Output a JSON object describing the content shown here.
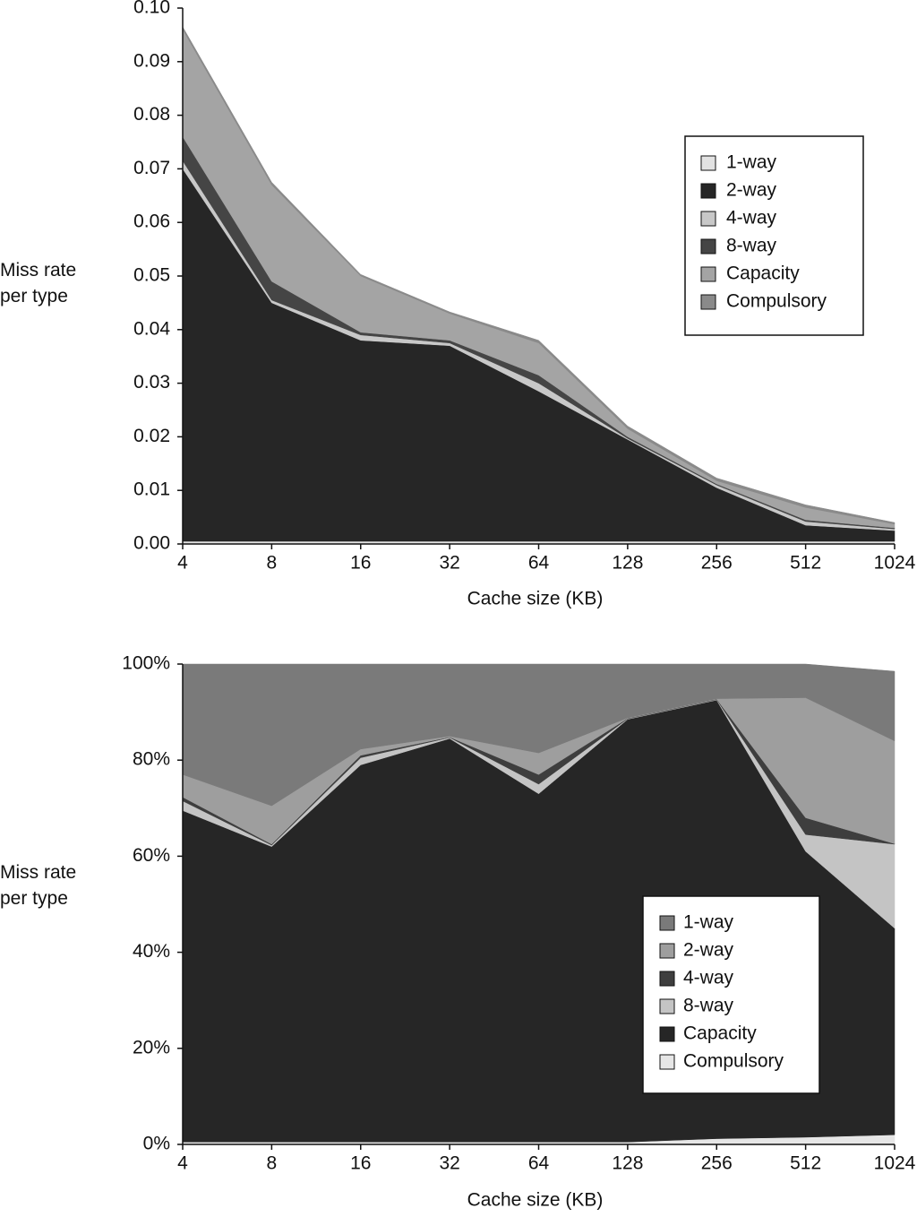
{
  "chart_data": [
    {
      "type": "stacked_area",
      "xlabel": "Cache size (KB)",
      "ylabel": "Miss rate per type",
      "categories": [
        "4",
        "8",
        "16",
        "32",
        "64",
        "128",
        "256",
        "512",
        "1024"
      ],
      "ylim": [
        0,
        0.1
      ],
      "yticks": [
        {
          "value": 0,
          "label": "0.00"
        },
        {
          "value": 0.01,
          "label": "0.01"
        },
        {
          "value": 0.02,
          "label": "0.02"
        },
        {
          "value": 0.03,
          "label": "0.03"
        },
        {
          "value": 0.04,
          "label": "0.04"
        },
        {
          "value": 0.05,
          "label": "0.05"
        },
        {
          "value": 0.06,
          "label": "0.06"
        },
        {
          "value": 0.07,
          "label": "0.07"
        },
        {
          "value": 0.08,
          "label": "0.08"
        },
        {
          "value": 0.09,
          "label": "0.09"
        },
        {
          "value": 0.1,
          "label": "0.10"
        }
      ],
      "legend_reversed": false,
      "series": [
        {
          "name": "1-way",
          "color": "#e2e2e2",
          "values": [
            0.0005,
            0.0005,
            0.0005,
            0.0005,
            0.0005,
            0.0005,
            0.0005,
            0.0005,
            0.0005
          ]
        },
        {
          "name": "2-way",
          "color": "#262626",
          "values": [
            0.0695,
            0.0445,
            0.0375,
            0.0365,
            0.028,
            0.019,
            0.01,
            0.003,
            0.002
          ]
        },
        {
          "name": "4-way",
          "color": "#c8c8c8",
          "values": [
            0.0015,
            0.0005,
            0.001,
            0.0005,
            0.0015,
            0.0002,
            0.0005,
            0.0007,
            0.0003
          ]
        },
        {
          "name": "8-way",
          "color": "#454545",
          "values": [
            0.0045,
            0.0035,
            0.0005,
            0.0005,
            0.0015,
            0.0003,
            0.0002,
            0.0003,
            0.0002
          ]
        },
        {
          "name": "Capacity",
          "color": "#a4a4a4",
          "values": [
            0.02,
            0.018,
            0.0105,
            0.005,
            0.006,
            0.0015,
            0.0006,
            0.0023,
            0.0007
          ]
        },
        {
          "name": "Compulsory",
          "color": "#8a8a8a",
          "values": [
            0.0005,
            0.0005,
            0.0003,
            0.0003,
            0.0005,
            0.0005,
            0.0005,
            0.0005,
            0.0003
          ]
        }
      ]
    },
    {
      "type": "stacked_area",
      "xlabel": "Cache size (KB)",
      "ylabel": "Miss rate per type",
      "categories": [
        "4",
        "8",
        "16",
        "32",
        "64",
        "128",
        "256",
        "512",
        "1024"
      ],
      "ylim": [
        0,
        100
      ],
      "yticks": [
        {
          "value": 0,
          "label": "0%"
        },
        {
          "value": 20,
          "label": "20%"
        },
        {
          "value": 40,
          "label": "40%"
        },
        {
          "value": 60,
          "label": "60%"
        },
        {
          "value": 80,
          "label": "80%"
        },
        {
          "value": 100,
          "label": "100%"
        }
      ],
      "legend_reversed": true,
      "series": [
        {
          "name": "Compulsory",
          "color": "#e6e6e6",
          "values": [
            0.5,
            0.5,
            0.5,
            0.5,
            0.5,
            0.5,
            1.2,
            1.5,
            2
          ]
        },
        {
          "name": "Capacity",
          "color": "#262626",
          "values": [
            69,
            61.5,
            78.5,
            84,
            72.5,
            88,
            91.3,
            59.5,
            43
          ]
        },
        {
          "name": "8-way",
          "color": "#c4c4c4",
          "values": [
            2,
            0.3,
            1.5,
            0.2,
            2,
            0.1,
            0.1,
            3.5,
            17.5
          ]
        },
        {
          "name": "4-way",
          "color": "#3e3e3e",
          "values": [
            0.8,
            0.2,
            0.5,
            0.1,
            2,
            0.1,
            0.1,
            3.5,
            0.1
          ]
        },
        {
          "name": "2-way",
          "color": "#9e9e9e",
          "values": [
            4.7,
            8,
            1.3,
            0.2,
            4.5,
            0.1,
            0.1,
            25,
            21.4
          ]
        },
        {
          "name": "1-way",
          "color": "#7a7a7a",
          "values": [
            23,
            29.5,
            17.7,
            15,
            18.5,
            11.2,
            7.2,
            7,
            14.5
          ]
        }
      ]
    }
  ]
}
